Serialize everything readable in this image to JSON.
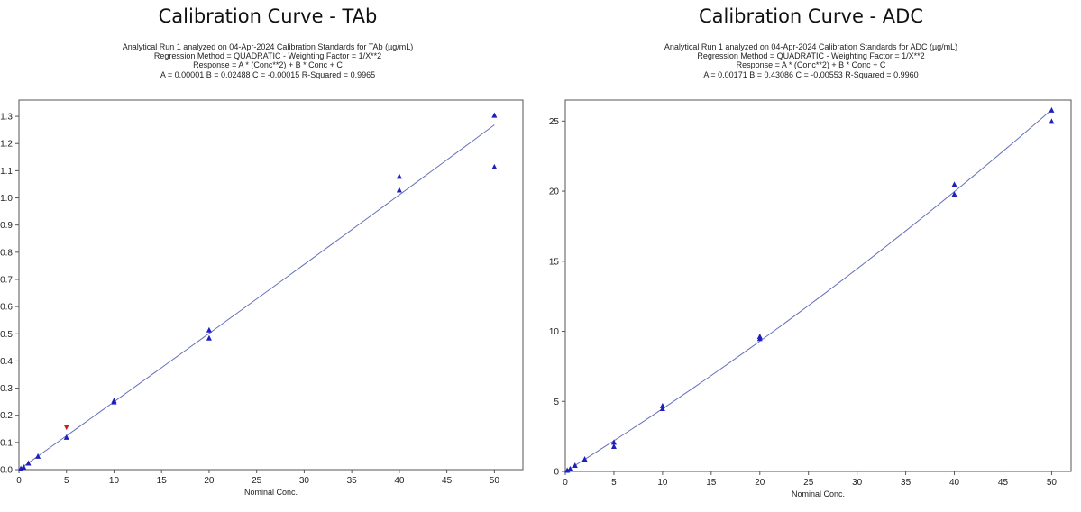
{
  "chart_data": [
    {
      "type": "scatter",
      "title": "Calibration Curve - TAb",
      "subtitle_lines": [
        "Analytical Run 1 analyzed on 04-Apr-2024 Calibration Standards for TAb (µg/mL)",
        "Regression Method = QUADRATIC - Weighting Factor = 1/X**2",
        "Response = A * (Conc**2) + B * Conc + C",
        "A = 0.00001 B = 0.02488 C = -0.00015 R-Squared = 0.9965"
      ],
      "xlabel": "Nominal Conc.",
      "ylabel": "",
      "xlim": [
        0,
        53
      ],
      "ylim": [
        0,
        1.36
      ],
      "xticks": [
        0,
        5,
        10,
        15,
        20,
        25,
        30,
        35,
        40,
        45,
        50
      ],
      "yticks": [
        0.0,
        0.1,
        0.2,
        0.3,
        0.4,
        0.5,
        0.6,
        0.7,
        0.8,
        0.9,
        1.0,
        1.1,
        1.2,
        1.3
      ],
      "ytick_decimals": 1,
      "fit": {
        "A": 1e-05,
        "B": 0.02488,
        "C": -0.00015,
        "x_from": 0,
        "x_to": 50
      },
      "points": [
        {
          "x": 0.2,
          "y": 0.005
        },
        {
          "x": 0.5,
          "y": 0.01
        },
        {
          "x": 1,
          "y": 0.025
        },
        {
          "x": 2,
          "y": 0.05
        },
        {
          "x": 5,
          "y": 0.12
        },
        {
          "x": 5,
          "y": 0.155,
          "excluded": true
        },
        {
          "x": 10,
          "y": 0.25
        },
        {
          "x": 10,
          "y": 0.255
        },
        {
          "x": 20,
          "y": 0.485
        },
        {
          "x": 20,
          "y": 0.515
        },
        {
          "x": 40,
          "y": 1.03
        },
        {
          "x": 40,
          "y": 1.08
        },
        {
          "x": 50,
          "y": 1.115
        },
        {
          "x": 50,
          "y": 1.305
        }
      ],
      "colors": {
        "point": "#1f1fbf",
        "excluded": "#cc1f1f",
        "line": "#6670b8",
        "axis": "#555555"
      }
    },
    {
      "type": "scatter",
      "title": "Calibration Curve - ADC",
      "subtitle_lines": [
        "Analytical Run 1 analyzed on 04-Apr-2024 Calibration Standards for ADC (µg/mL)",
        "Regression Method = QUADRATIC - Weighting Factor = 1/X**2",
        "Response = A * (Conc**2) + B * Conc + C",
        "A = 0.00171 B = 0.43086 C = -0.00553 R-Squared = 0.9960"
      ],
      "xlabel": "Nominal Conc.",
      "ylabel": "",
      "xlim": [
        0,
        52
      ],
      "ylim": [
        0,
        26.5
      ],
      "xticks": [
        0,
        5,
        10,
        15,
        20,
        25,
        30,
        35,
        40,
        45,
        50
      ],
      "yticks": [
        0,
        5,
        10,
        15,
        20,
        25
      ],
      "ytick_decimals": 0,
      "fit": {
        "A": 0.00171,
        "B": 0.43086,
        "C": -0.00553,
        "x_from": 0,
        "x_to": 50
      },
      "points": [
        {
          "x": 0.2,
          "y": 0.1
        },
        {
          "x": 0.5,
          "y": 0.2
        },
        {
          "x": 1,
          "y": 0.45
        },
        {
          "x": 2,
          "y": 0.9
        },
        {
          "x": 5,
          "y": 1.8
        },
        {
          "x": 5,
          "y": 2.1
        },
        {
          "x": 10,
          "y": 4.5
        },
        {
          "x": 10,
          "y": 4.7
        },
        {
          "x": 20,
          "y": 9.5
        },
        {
          "x": 20,
          "y": 9.65
        },
        {
          "x": 40,
          "y": 19.8
        },
        {
          "x": 40,
          "y": 20.5
        },
        {
          "x": 50,
          "y": 25.0
        },
        {
          "x": 50,
          "y": 25.8
        }
      ],
      "colors": {
        "point": "#1f1fbf",
        "excluded": "#cc1f1f",
        "line": "#6670b8",
        "axis": "#555555"
      }
    }
  ]
}
